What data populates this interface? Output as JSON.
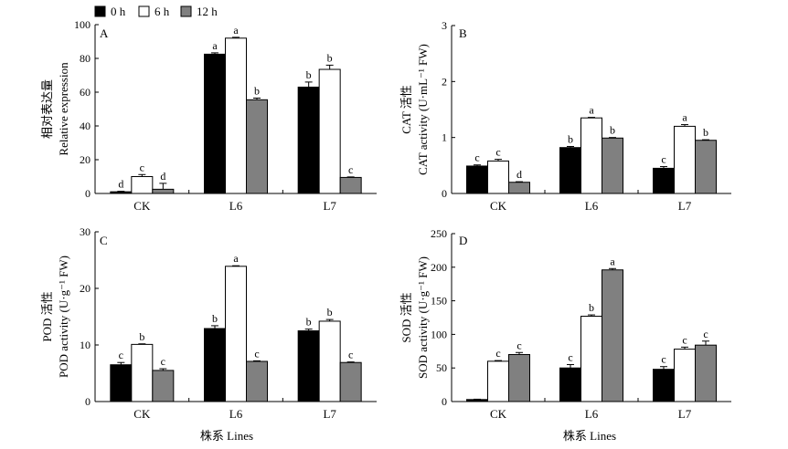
{
  "legend": {
    "entries": [
      {
        "label": "0 h",
        "color": "#000000"
      },
      {
        "label": "6 h",
        "color": "#ffffff"
      },
      {
        "label": "12 h",
        "color": "#808080"
      }
    ]
  },
  "x_axis_title": "株系 Lines",
  "chart_data": [
    {
      "type": "bar",
      "panel_letter": "A",
      "ylabel_cn": "相对表达量",
      "ylabel_en": "Relative expression",
      "ylim": [
        0,
        100
      ],
      "yticks": [
        0,
        20,
        40,
        60,
        80,
        100
      ],
      "categories": [
        "CK",
        "L6",
        "L7"
      ],
      "series": [
        {
          "name": "0 h",
          "values": [
            1.0,
            82.5,
            63.0
          ],
          "errors": [
            0.3,
            0.8,
            3.0
          ],
          "letters": [
            "d",
            "a",
            "b"
          ]
        },
        {
          "name": "6 h",
          "values": [
            10.0,
            92.0,
            73.5
          ],
          "errors": [
            1.2,
            0.5,
            2.5
          ],
          "letters": [
            "c",
            "a",
            "b"
          ]
        },
        {
          "name": "12 h",
          "values": [
            2.5,
            55.5,
            9.5
          ],
          "errors": [
            3.5,
            1.0,
            0.3
          ],
          "letters": [
            "d",
            "b",
            "c"
          ]
        }
      ]
    },
    {
      "type": "bar",
      "panel_letter": "B",
      "ylabel_cn": "CAT 活性",
      "ylabel_en": "CAT activity (U·mL⁻¹ FW)",
      "ylim": [
        0,
        3
      ],
      "yticks": [
        0,
        1,
        2,
        3
      ],
      "categories": [
        "CK",
        "L6",
        "L7"
      ],
      "series": [
        {
          "name": "0 h",
          "values": [
            0.49,
            0.82,
            0.45
          ],
          "errors": [
            0.02,
            0.02,
            0.03
          ],
          "letters": [
            "c",
            "b",
            "c"
          ]
        },
        {
          "name": "6 h",
          "values": [
            0.58,
            1.35,
            1.2
          ],
          "errors": [
            0.03,
            0.01,
            0.03
          ],
          "letters": [
            "c",
            "a",
            "a"
          ]
        },
        {
          "name": "12 h",
          "values": [
            0.2,
            0.99,
            0.95
          ],
          "errors": [
            0.01,
            0.01,
            0.01
          ],
          "letters": [
            "d",
            "b",
            "b"
          ]
        }
      ]
    },
    {
      "type": "bar",
      "panel_letter": "C",
      "ylabel_cn": "POD 活性",
      "ylabel_en": "POD  activity (U·g⁻¹ FW)",
      "ylim": [
        0,
        30
      ],
      "yticks": [
        0,
        10,
        20,
        30
      ],
      "categories": [
        "CK",
        "L6",
        "L7"
      ],
      "series": [
        {
          "name": "0 h",
          "values": [
            6.5,
            12.9,
            12.5
          ],
          "errors": [
            0.4,
            0.5,
            0.3
          ],
          "letters": [
            "c",
            "b",
            "b"
          ]
        },
        {
          "name": "6 h",
          "values": [
            10.1,
            23.9,
            14.2
          ],
          "errors": [
            0.1,
            0.1,
            0.3
          ],
          "letters": [
            "b",
            "a",
            "b"
          ]
        },
        {
          "name": "12 h",
          "values": [
            5.5,
            7.1,
            6.9
          ],
          "errors": [
            0.3,
            0.1,
            0.1
          ],
          "letters": [
            "c",
            "c",
            "c"
          ]
        }
      ]
    },
    {
      "type": "bar",
      "panel_letter": "D",
      "ylabel_cn": "SOD 活性",
      "ylabel_en": "SOD activity (U·g⁻¹ FW)",
      "ylim": [
        0,
        250
      ],
      "yticks": [
        0,
        50,
        100,
        150,
        200,
        250
      ],
      "categories": [
        "CK",
        "L6",
        "L7"
      ],
      "series": [
        {
          "name": "0 h",
          "values": [
            3,
            50,
            48
          ],
          "errors": [
            0.5,
            5,
            4
          ],
          "letters": [
            "",
            "c",
            "c"
          ]
        },
        {
          "name": "6 h",
          "values": [
            60,
            127,
            78
          ],
          "errors": [
            1,
            2,
            3
          ],
          "letters": [
            "c",
            "b",
            "c"
          ]
        },
        {
          "name": "12 h",
          "values": [
            70,
            196,
            84
          ],
          "errors": [
            3,
            2,
            6
          ],
          "letters": [
            "c",
            "a",
            "c"
          ]
        }
      ]
    }
  ]
}
